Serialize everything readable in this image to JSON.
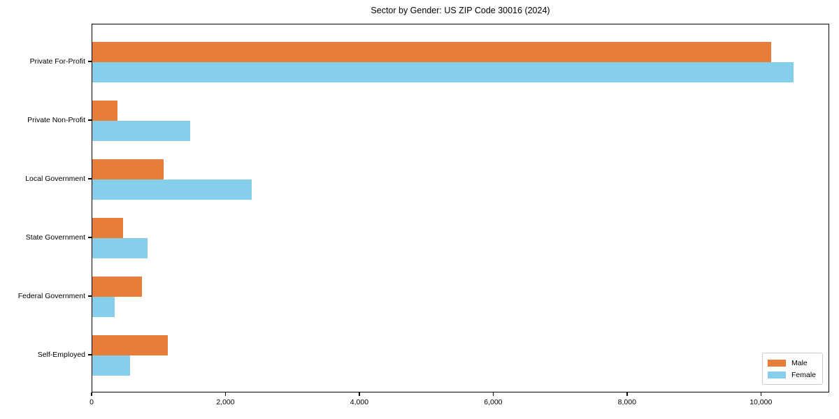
{
  "chart_data": {
    "type": "bar",
    "orientation": "horizontal",
    "title": "Sector by Gender: US ZIP Code 30016 (2024)",
    "categories": [
      "Private For-Profit",
      "Private Non-Profit",
      "Local Government",
      "State Government",
      "Federal Government",
      "Self-Employed"
    ],
    "series": [
      {
        "name": "Male",
        "color": "#E87C3B",
        "values": [
          10140,
          380,
          1070,
          460,
          740,
          1130
        ]
      },
      {
        "name": "Female",
        "color": "#87CEEB",
        "values": [
          10480,
          1460,
          2380,
          830,
          330,
          560
        ]
      }
    ],
    "xlabel": "",
    "ylabel": "",
    "xlim": [
      0,
      11000
    ],
    "x_ticks": [
      0,
      2000,
      4000,
      6000,
      8000,
      10000
    ],
    "x_tick_labels": [
      "0",
      "2,000",
      "4,000",
      "6,000",
      "8,000",
      "10,000"
    ],
    "legend_position": "lower right",
    "grid": false,
    "colors": {
      "male": "#E87C3B",
      "female": "#87CEEB",
      "axis": "#000000"
    }
  }
}
